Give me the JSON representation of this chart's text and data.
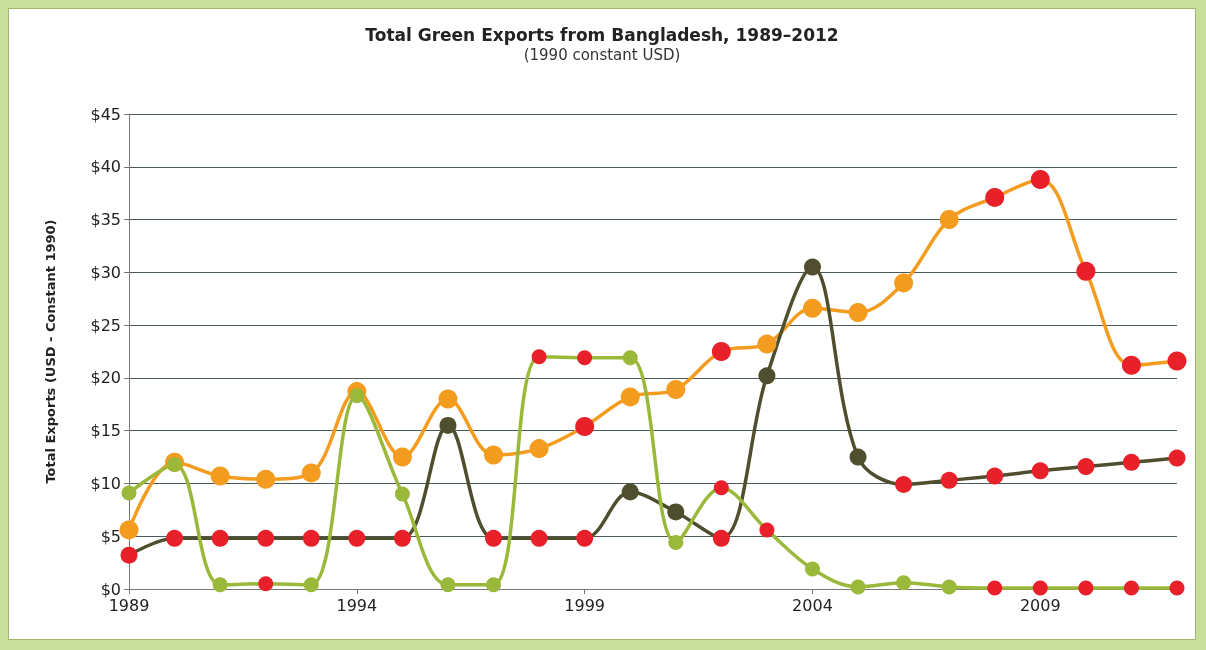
{
  "chart_data": {
    "type": "line",
    "title": "Total Green Exports from Bangladesh, 1989–2012",
    "subtitle": "(1990 constant USD)",
    "ylabel": "Total Exports (USD - Constant 1990)",
    "x": [
      1989,
      1990,
      1991,
      1992,
      1993,
      1994,
      1995,
      1996,
      1997,
      1998,
      1999,
      2000,
      2001,
      2002,
      2003,
      2004,
      2005,
      2006,
      2007,
      2008,
      2009,
      2010,
      2011,
      2012
    ],
    "xlim": [
      1989,
      2012
    ],
    "xticks": [
      1989,
      1994,
      1999,
      2004,
      2009
    ],
    "ylim": [
      0,
      45
    ],
    "yticks": [
      {
        "value": 0,
        "label": "$0"
      },
      {
        "value": 5,
        "label": "$5"
      },
      {
        "value": 10,
        "label": "$10"
      },
      {
        "value": 15,
        "label": "$15"
      },
      {
        "value": 20,
        "label": "$20"
      },
      {
        "value": 25,
        "label": "$25"
      },
      {
        "value": 30,
        "label": "$30"
      },
      {
        "value": 35,
        "label": "$35"
      },
      {
        "value": 40,
        "label": "$40"
      },
      {
        "value": 45,
        "label": "$45"
      }
    ],
    "grid": "y",
    "marker": "circle",
    "line_style": "solid",
    "series": [
      {
        "color": "#f39c1f",
        "values": [
          5.6,
          12.0,
          10.7,
          10.4,
          11.0,
          18.7,
          12.5,
          18.0,
          12.7,
          13.3,
          15.4,
          18.2,
          18.9,
          22.5,
          23.2,
          26.6,
          26.2,
          29.0,
          35.0,
          37.1,
          38.8,
          30.1,
          21.2,
          21.6
        ],
        "colors": [
          "#f39c1f",
          "#f39c1f",
          "#f39c1f",
          "#f39c1f",
          "#f39c1f",
          "#f39c1f",
          "#f39c1f",
          "#f39c1f",
          "#f39c1f",
          "#f39c1f",
          "#e8202a",
          "#f39c1f",
          "#f39c1f",
          "#e8202a",
          "#f39c1f",
          "#f39c1f",
          "#f39c1f",
          "#f39c1f",
          "#f39c1f",
          "#e8202a",
          "#e8202a",
          "#e8202a",
          "#e8202a",
          "#e8202a"
        ]
      },
      {
        "color": "#4f4f2f",
        "values": [
          3.2,
          4.8,
          4.8,
          4.8,
          4.8,
          4.8,
          4.8,
          15.5,
          4.8,
          4.8,
          4.8,
          9.2,
          7.3,
          4.8,
          20.2,
          30.5,
          12.5,
          9.9,
          10.3,
          10.7,
          11.2,
          11.6,
          12.0,
          12.4
        ],
        "colors": [
          "#e8202a",
          "#e8202a",
          "#e8202a",
          "#e8202a",
          "#e8202a",
          "#e8202a",
          "#e8202a",
          "#4f4f2f",
          "#e8202a",
          "#e8202a",
          "#e8202a",
          "#4f4f2f",
          "#4f4f2f",
          "#e8202a",
          "#4f4f2f",
          "#4f4f2f",
          "#4f4f2f",
          "#e8202a",
          "#e8202a",
          "#e8202a",
          "#e8202a",
          "#e8202a",
          "#e8202a",
          "#e8202a"
        ]
      },
      {
        "color": "#9ab83a",
        "values": [
          9.1,
          11.8,
          0.4,
          0.5,
          0.4,
          18.3,
          9.0,
          0.4,
          0.4,
          22.0,
          21.9,
          21.9,
          4.4,
          9.6,
          5.6,
          1.9,
          0.2,
          0.6,
          0.2,
          0.1,
          0.1,
          0.1,
          0.1,
          0.1
        ],
        "colors": [
          "#9ab83a",
          "#9ab83a",
          "#9ab83a",
          "#e8202a",
          "#9ab83a",
          "#9ab83a",
          "#9ab83a",
          "#9ab83a",
          "#9ab83a",
          "#e8202a",
          "#e8202a",
          "#9ab83a",
          "#9ab83a",
          "#e8202a",
          "#e8202a",
          "#9ab83a",
          "#9ab83a",
          "#9ab83a",
          "#9ab83a",
          "#e8202a",
          "#e8202a",
          "#e8202a",
          "#e8202a",
          "#e8202a"
        ]
      }
    ]
  }
}
